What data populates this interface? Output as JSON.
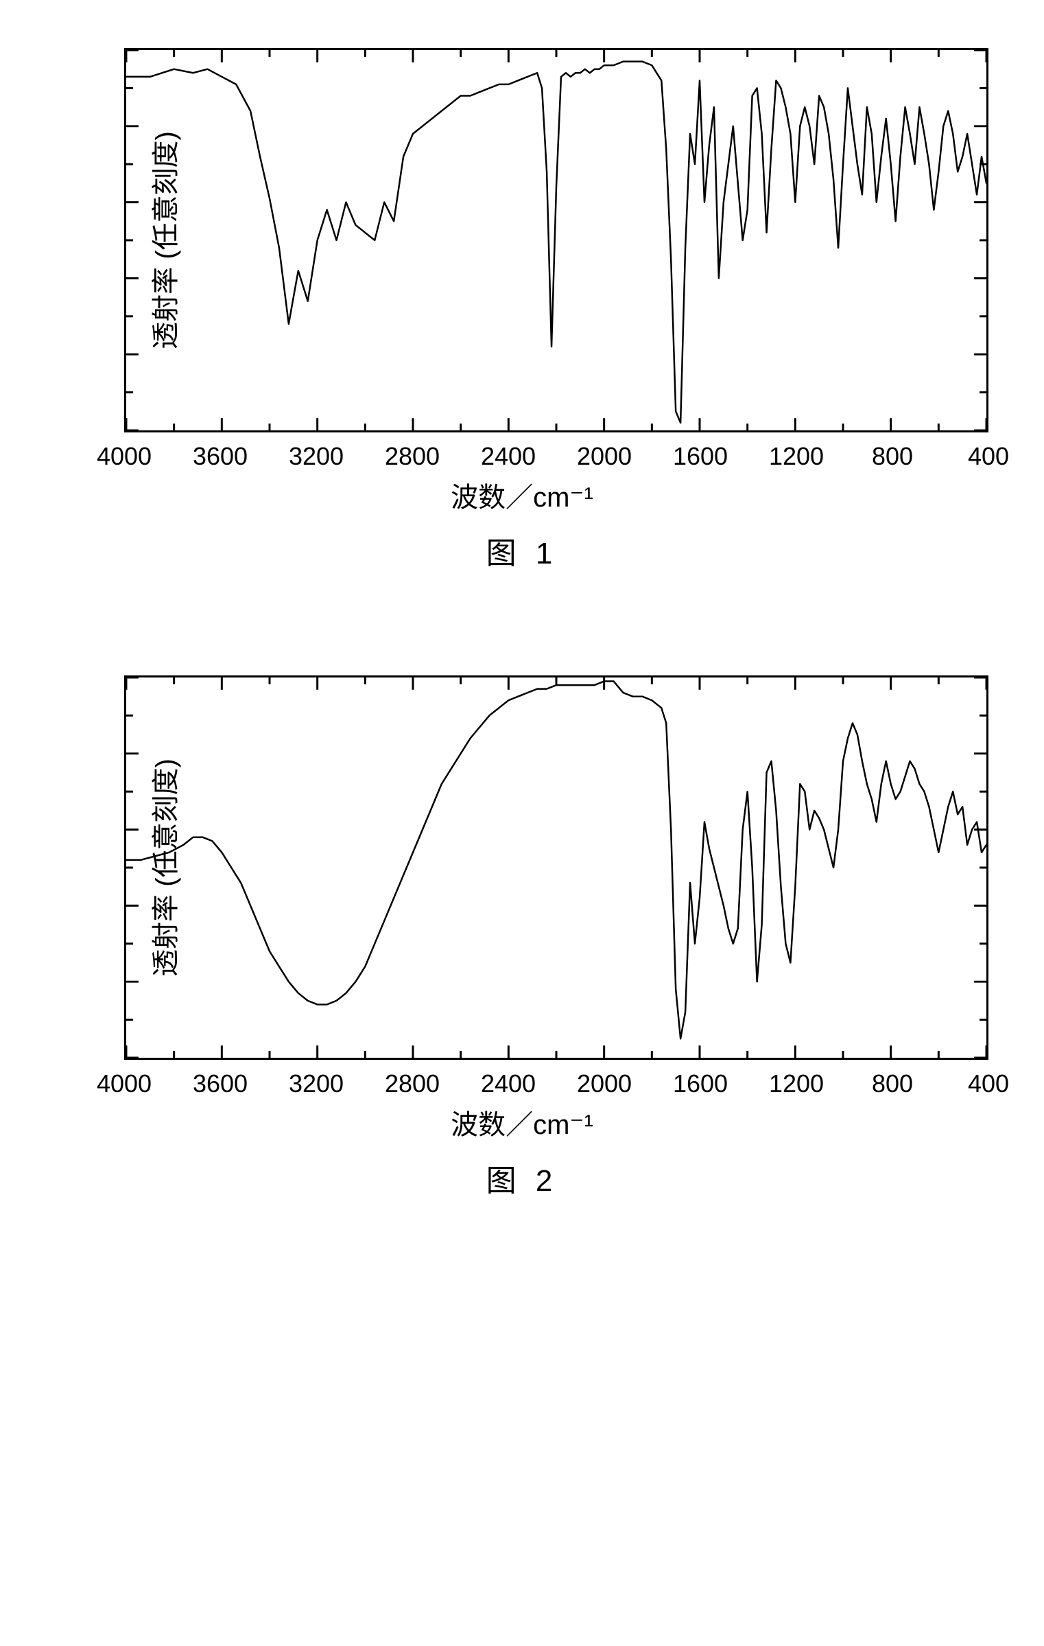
{
  "chart1": {
    "type": "line",
    "title": null,
    "caption": "图   1",
    "x_label": "波数／cm⁻¹",
    "y_label": "透射率 (任意刻度)",
    "x_domain": [
      4000,
      400
    ],
    "x_ticks": [
      4000,
      3600,
      3200,
      2800,
      2400,
      2000,
      1600,
      1200,
      800,
      400
    ],
    "x_minor_step": 200,
    "y_domain": [
      0,
      100
    ],
    "y_ticks_major": [
      0,
      20,
      40,
      60,
      80,
      100
    ],
    "y_ticks_minor": [
      10,
      30,
      50,
      70,
      90
    ],
    "background_color": "#ffffff",
    "line_color": "#000000",
    "line_width": 2.5,
    "border_color": "#000000",
    "label_fontsize": 40,
    "tick_fontsize": 36,
    "series": {
      "xw": [
        4000,
        3900,
        3800,
        3720,
        3660,
        3600,
        3540,
        3480,
        3440,
        3400,
        3360,
        3320,
        3280,
        3240,
        3200,
        3160,
        3120,
        3080,
        3040,
        3000,
        2960,
        2920,
        2880,
        2840,
        2800,
        2760,
        2720,
        2680,
        2640,
        2600,
        2560,
        2520,
        2480,
        2440,
        2400,
        2360,
        2320,
        2280,
        2260,
        2240,
        2220,
        2200,
        2180,
        2160,
        2140,
        2120,
        2100,
        2080,
        2060,
        2040,
        2020,
        2000,
        1960,
        1920,
        1880,
        1840,
        1800,
        1760,
        1740,
        1720,
        1700,
        1680,
        1660,
        1640,
        1620,
        1600,
        1580,
        1560,
        1540,
        1520,
        1500,
        1480,
        1460,
        1440,
        1420,
        1400,
        1380,
        1360,
        1340,
        1320,
        1300,
        1280,
        1260,
        1240,
        1220,
        1200,
        1180,
        1160,
        1140,
        1120,
        1100,
        1080,
        1060,
        1040,
        1020,
        1000,
        980,
        960,
        940,
        920,
        900,
        880,
        860,
        840,
        820,
        800,
        780,
        760,
        740,
        720,
        700,
        680,
        660,
        640,
        620,
        600,
        580,
        560,
        540,
        520,
        500,
        480,
        460,
        440,
        420,
        400
      ],
      "yt": [
        93,
        93,
        95,
        94,
        95,
        93,
        91,
        84,
        72,
        61,
        48,
        28,
        42,
        34,
        50,
        58,
        50,
        60,
        54,
        52,
        50,
        60,
        55,
        72,
        78,
        80,
        82,
        84,
        86,
        88,
        88,
        89,
        90,
        91,
        91,
        92,
        93,
        94,
        90,
        68,
        22,
        64,
        93,
        94,
        93,
        94,
        94,
        95,
        94,
        95,
        95,
        96,
        96,
        97,
        97,
        97,
        96,
        92,
        74,
        45,
        5,
        2,
        48,
        78,
        70,
        92,
        60,
        75,
        85,
        40,
        60,
        70,
        80,
        65,
        50,
        58,
        88,
        90,
        78,
        52,
        74,
        92,
        90,
        85,
        78,
        60,
        80,
        85,
        80,
        70,
        88,
        85,
        78,
        66,
        48,
        70,
        90,
        80,
        70,
        62,
        85,
        78,
        60,
        72,
        82,
        70,
        55,
        72,
        85,
        78,
        70,
        85,
        78,
        70,
        58,
        68,
        80,
        84,
        78,
        68,
        72,
        78,
        70,
        62,
        72,
        65
      ],
      "desc": "IR transmittance spectrum, sharp nitrile ~2240, broad NH/OH 3200–3400, fingerprint region"
    }
  },
  "chart2": {
    "type": "line",
    "title": null,
    "caption": "图   2",
    "x_label": "波数／cm⁻¹",
    "y_label": "透射率 (任意刻度)",
    "x_domain": [
      4000,
      400
    ],
    "x_ticks": [
      4000,
      3600,
      3200,
      2800,
      2400,
      2000,
      1600,
      1200,
      800,
      400
    ],
    "x_minor_step": 200,
    "y_domain": [
      0,
      100
    ],
    "y_ticks_major": [
      0,
      20,
      40,
      60,
      80,
      100
    ],
    "y_ticks_minor": [
      10,
      30,
      50,
      70,
      90
    ],
    "background_color": "#ffffff",
    "line_color": "#000000",
    "line_width": 2.5,
    "border_color": "#000000",
    "label_fontsize": 40,
    "tick_fontsize": 36,
    "series": {
      "xw": [
        4000,
        3940,
        3880,
        3820,
        3760,
        3720,
        3680,
        3640,
        3600,
        3560,
        3520,
        3480,
        3440,
        3400,
        3360,
        3320,
        3280,
        3240,
        3200,
        3160,
        3120,
        3080,
        3040,
        3000,
        2960,
        2920,
        2880,
        2840,
        2800,
        2760,
        2720,
        2680,
        2640,
        2600,
        2560,
        2520,
        2480,
        2440,
        2400,
        2360,
        2320,
        2280,
        2240,
        2200,
        2160,
        2120,
        2080,
        2040,
        2000,
        1960,
        1920,
        1880,
        1840,
        1800,
        1780,
        1760,
        1740,
        1720,
        1700,
        1680,
        1660,
        1640,
        1620,
        1600,
        1580,
        1560,
        1540,
        1520,
        1500,
        1480,
        1460,
        1440,
        1420,
        1400,
        1380,
        1360,
        1340,
        1320,
        1300,
        1280,
        1260,
        1240,
        1220,
        1200,
        1180,
        1160,
        1140,
        1120,
        1100,
        1080,
        1060,
        1040,
        1020,
        1000,
        980,
        960,
        940,
        920,
        900,
        880,
        860,
        840,
        820,
        800,
        780,
        760,
        740,
        720,
        700,
        680,
        660,
        640,
        620,
        600,
        580,
        560,
        540,
        520,
        500,
        480,
        460,
        440,
        420,
        400
      ],
      "yt": [
        52,
        52,
        53,
        54,
        56,
        58,
        58,
        57,
        54,
        50,
        46,
        40,
        34,
        28,
        24,
        20,
        17,
        15,
        14,
        14,
        15,
        17,
        20,
        24,
        30,
        36,
        42,
        48,
        54,
        60,
        66,
        72,
        76,
        80,
        84,
        87,
        90,
        92,
        94,
        95,
        96,
        97,
        97,
        98,
        98,
        98,
        98,
        98,
        99,
        99,
        96,
        95,
        95,
        94,
        93,
        92,
        88,
        60,
        18,
        5,
        12,
        46,
        30,
        42,
        62,
        55,
        50,
        45,
        40,
        34,
        30,
        34,
        60,
        70,
        50,
        20,
        35,
        75,
        78,
        65,
        45,
        30,
        25,
        45,
        72,
        70,
        60,
        65,
        63,
        60,
        55,
        50,
        60,
        78,
        84,
        88,
        85,
        78,
        72,
        68,
        62,
        72,
        78,
        72,
        68,
        70,
        74,
        78,
        76,
        72,
        70,
        66,
        60,
        54,
        60,
        66,
        70,
        64,
        66,
        56,
        60,
        62,
        54,
        56
      ],
      "desc": "IR transmittance spectrum, very broad OH 3000–3600, carbonyl ~1700, fingerprint region"
    }
  }
}
